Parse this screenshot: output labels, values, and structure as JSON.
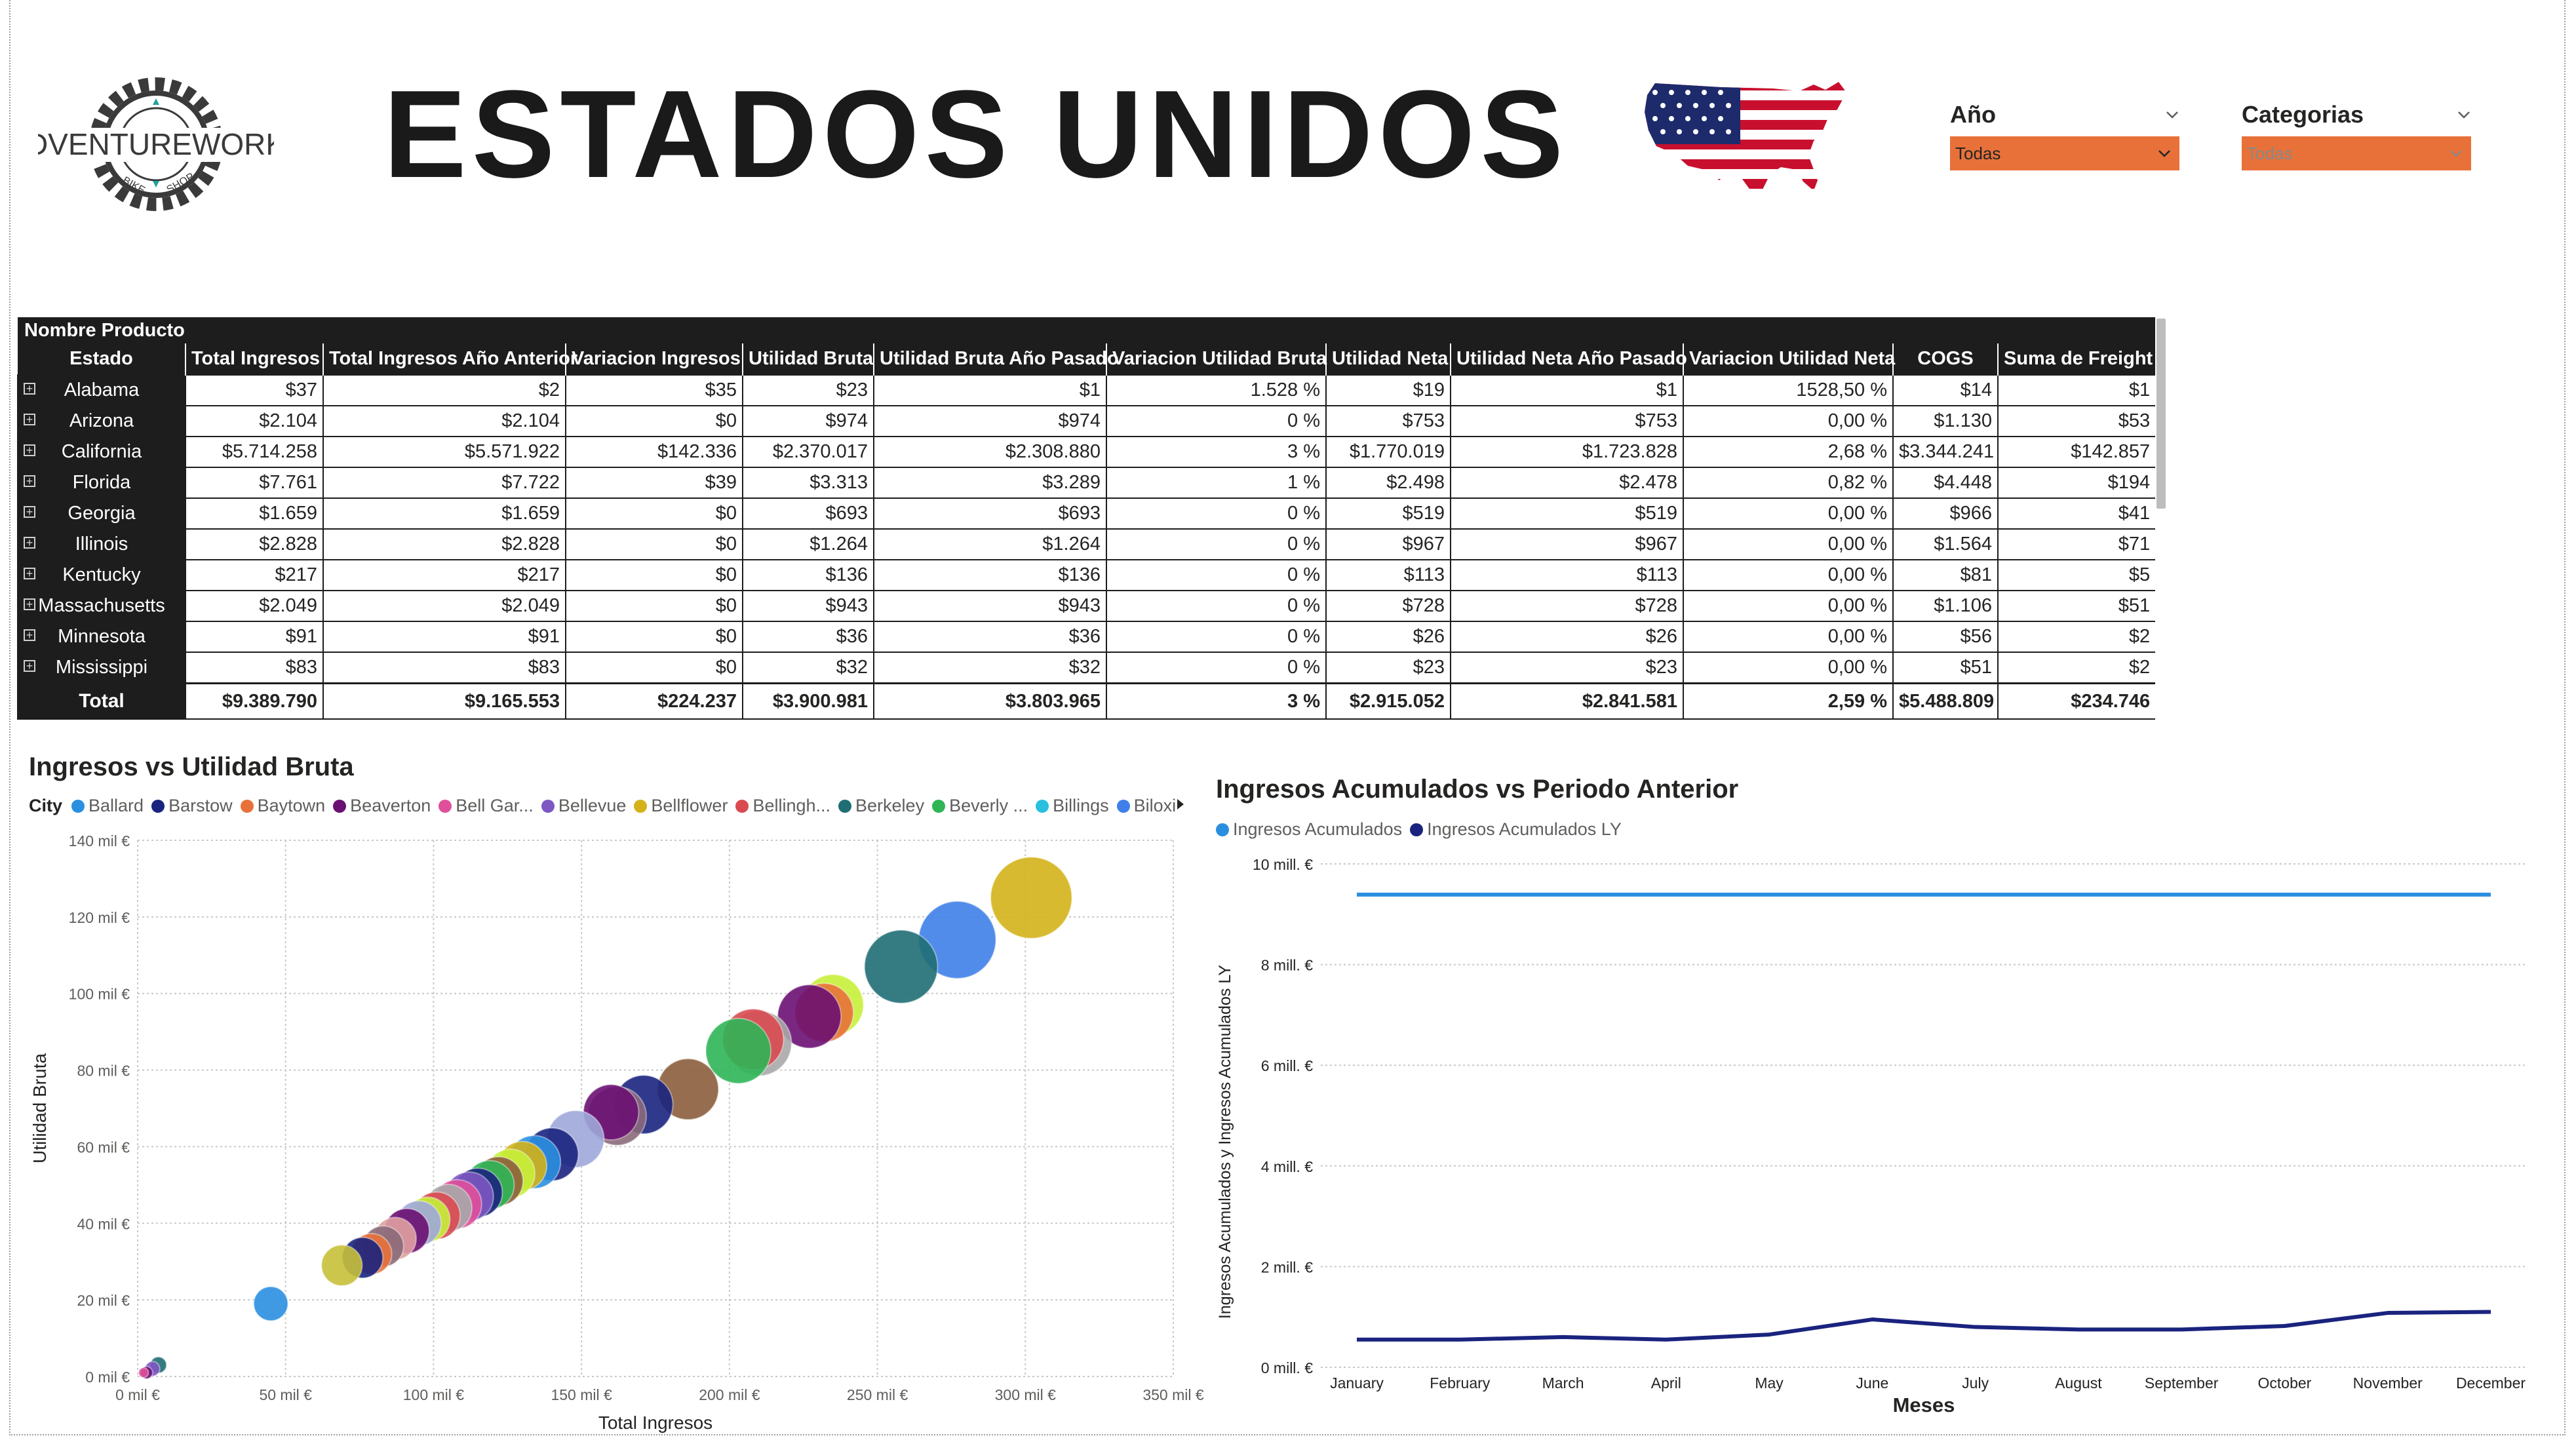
{
  "page": {
    "title": "ESTADOS UNIDOS"
  },
  "logo": {
    "brand": "ADVENTUREWORKS",
    "ring_left": "BIKE",
    "ring_right": "SHOP"
  },
  "slicers": [
    {
      "label": "Año",
      "value": "Todas"
    },
    {
      "label": "Categorias",
      "value": "Todas"
    }
  ],
  "matrix": {
    "top_header": "Nombre Producto",
    "columns": [
      "Estado",
      "Total Ingresos",
      "Total Ingresos Año Anterior",
      "Variacion Ingresos",
      "Utilidad Bruta",
      "Utilidad Bruta Año Pasado",
      "Variacion Utilidad Bruta",
      "Utilidad Neta",
      "Utilidad Neta Año Pasado",
      "Variacion Utilidad Neta",
      "COGS",
      "Suma de Freight"
    ],
    "rows": [
      [
        "Alabama",
        "$37",
        "$2",
        "$35",
        "$23",
        "$1",
        "1.528 %",
        "$19",
        "$1",
        "1528,50 %",
        "$14",
        "$1"
      ],
      [
        "Arizona",
        "$2.104",
        "$2.104",
        "$0",
        "$974",
        "$974",
        "0 %",
        "$753",
        "$753",
        "0,00 %",
        "$1.130",
        "$53"
      ],
      [
        "California",
        "$5.714.258",
        "$5.571.922",
        "$142.336",
        "$2.370.017",
        "$2.308.880",
        "3 %",
        "$1.770.019",
        "$1.723.828",
        "2,68 %",
        "$3.344.241",
        "$142.857"
      ],
      [
        "Florida",
        "$7.761",
        "$7.722",
        "$39",
        "$3.313",
        "$3.289",
        "1 %",
        "$2.498",
        "$2.478",
        "0,82 %",
        "$4.448",
        "$194"
      ],
      [
        "Georgia",
        "$1.659",
        "$1.659",
        "$0",
        "$693",
        "$693",
        "0 %",
        "$519",
        "$519",
        "0,00 %",
        "$966",
        "$41"
      ],
      [
        "Illinois",
        "$2.828",
        "$2.828",
        "$0",
        "$1.264",
        "$1.264",
        "0 %",
        "$967",
        "$967",
        "0,00 %",
        "$1.564",
        "$71"
      ],
      [
        "Kentucky",
        "$217",
        "$217",
        "$0",
        "$136",
        "$136",
        "0 %",
        "$113",
        "$113",
        "0,00 %",
        "$81",
        "$5"
      ],
      [
        "Massachusetts",
        "$2.049",
        "$2.049",
        "$0",
        "$943",
        "$943",
        "0 %",
        "$728",
        "$728",
        "0,00 %",
        "$1.106",
        "$51"
      ],
      [
        "Minnesota",
        "$91",
        "$91",
        "$0",
        "$36",
        "$36",
        "0 %",
        "$26",
        "$26",
        "0,00 %",
        "$56",
        "$2"
      ],
      [
        "Mississippi",
        "$83",
        "$83",
        "$0",
        "$32",
        "$32",
        "0 %",
        "$23",
        "$23",
        "0,00 %",
        "$51",
        "$2"
      ]
    ],
    "total": [
      "Total",
      "$9.389.790",
      "$9.165.553",
      "$224.237",
      "$3.900.981",
      "$3.803.965",
      "3 %",
      "$2.915.052",
      "$2.841.581",
      "2,59 %",
      "$5.488.809",
      "$234.746"
    ]
  },
  "chart_data": [
    {
      "type": "scatter",
      "title": "Ingresos vs Utilidad Bruta",
      "xlabel": "Total Ingresos",
      "ylabel": "Utilidad Bruta",
      "legend_title": "City",
      "legend_position": "top",
      "legend": [
        {
          "name": "Ballard",
          "color": "#2b8fe0"
        },
        {
          "name": "Barstow",
          "color": "#1a237e"
        },
        {
          "name": "Baytown",
          "color": "#e8713a"
        },
        {
          "name": "Beaverton",
          "color": "#6a1072"
        },
        {
          "name": "Bell Gar...",
          "color": "#e0509a"
        },
        {
          "name": "Bellevue",
          "color": "#7e57c2"
        },
        {
          "name": "Bellflower",
          "color": "#d4b21a"
        },
        {
          "name": "Bellingh...",
          "color": "#d94a50"
        },
        {
          "name": "Berkeley",
          "color": "#1f6e74"
        },
        {
          "name": "Beverly ...",
          "color": "#2fb556"
        },
        {
          "name": "Billings",
          "color": "#29c0e0"
        },
        {
          "name": "Biloxi",
          "color": "#3f7fe8"
        }
      ],
      "xlim": [
        0,
        350
      ],
      "ylim": [
        0,
        140
      ],
      "x_ticks": [
        "0 mil €",
        "50 mil €",
        "100 mil €",
        "150 mil €",
        "200 mil €",
        "250 mil €",
        "300 mil €",
        "350 mil €"
      ],
      "y_ticks": [
        "0 mil €",
        "20 mil €",
        "40 mil €",
        "60 mil €",
        "80 mil €",
        "100 mil €",
        "120 mil €",
        "140 mil €"
      ],
      "grid": true,
      "points": [
        {
          "x": 302,
          "y": 125,
          "size": 1.0,
          "color": "#d4b21a"
        },
        {
          "x": 277,
          "y": 114,
          "size": 0.95,
          "color": "#3f7fe8"
        },
        {
          "x": 258,
          "y": 107,
          "size": 0.9,
          "color": "#1f6e74"
        },
        {
          "x": 235,
          "y": 97,
          "size": 0.75,
          "color": "#c6f03a"
        },
        {
          "x": 232,
          "y": 95,
          "size": 0.72,
          "color": "#e8713a"
        },
        {
          "x": 227,
          "y": 94,
          "size": 0.78,
          "color": "#6a1072"
        },
        {
          "x": 210,
          "y": 87,
          "size": 0.8,
          "color": "#a8a8a8"
        },
        {
          "x": 208,
          "y": 88,
          "size": 0.75,
          "color": "#d94a50"
        },
        {
          "x": 203,
          "y": 85,
          "size": 0.8,
          "color": "#2fb556"
        },
        {
          "x": 186,
          "y": 75,
          "size": 0.75,
          "color": "#8b5e3c"
        },
        {
          "x": 171,
          "y": 71,
          "size": 0.72,
          "color": "#1a237e"
        },
        {
          "x": 162,
          "y": 68,
          "size": 0.72,
          "color": "#8b6a7a"
        },
        {
          "x": 160,
          "y": 69,
          "size": 0.68,
          "color": "#6a1072"
        },
        {
          "x": 148,
          "y": 62,
          "size": 0.7,
          "color": "#9fa8da"
        },
        {
          "x": 140,
          "y": 58,
          "size": 0.65,
          "color": "#1a237e"
        },
        {
          "x": 134,
          "y": 56,
          "size": 0.65,
          "color": "#2b8fe0"
        },
        {
          "x": 130,
          "y": 55,
          "size": 0.6,
          "color": "#d4b21a"
        },
        {
          "x": 126,
          "y": 53,
          "size": 0.6,
          "color": "#c6f03a"
        },
        {
          "x": 122,
          "y": 51,
          "size": 0.6,
          "color": "#8b5e3c"
        },
        {
          "x": 119,
          "y": 50,
          "size": 0.6,
          "color": "#2fb556"
        },
        {
          "x": 115,
          "y": 48,
          "size": 0.6,
          "color": "#1a237e"
        },
        {
          "x": 112,
          "y": 47,
          "size": 0.6,
          "color": "#7e57c2"
        },
        {
          "x": 108,
          "y": 45,
          "size": 0.6,
          "color": "#e0509a"
        },
        {
          "x": 105,
          "y": 44,
          "size": 0.58,
          "color": "#a8a8a8"
        },
        {
          "x": 101,
          "y": 42,
          "size": 0.58,
          "color": "#d94a50"
        },
        {
          "x": 98,
          "y": 41,
          "size": 0.55,
          "color": "#c6f03a"
        },
        {
          "x": 95,
          "y": 40,
          "size": 0.55,
          "color": "#9fa8da"
        },
        {
          "x": 91,
          "y": 38,
          "size": 0.55,
          "color": "#6a1072"
        },
        {
          "x": 87,
          "y": 36,
          "size": 0.52,
          "color": "#e0a0a0"
        },
        {
          "x": 83,
          "y": 34,
          "size": 0.5,
          "color": "#8b6a7a"
        },
        {
          "x": 79,
          "y": 32,
          "size": 0.5,
          "color": "#e8713a"
        },
        {
          "x": 76,
          "y": 31,
          "size": 0.5,
          "color": "#1a237e"
        },
        {
          "x": 69,
          "y": 29,
          "size": 0.5,
          "color": "#c7c03a"
        },
        {
          "x": 45,
          "y": 19,
          "size": 0.42,
          "color": "#2b8fe0"
        },
        {
          "x": 7,
          "y": 3,
          "size": 0.2,
          "color": "#1f6e74"
        },
        {
          "x": 5,
          "y": 2,
          "size": 0.18,
          "color": "#7e57c2"
        },
        {
          "x": 3,
          "y": 1,
          "size": 0.15,
          "color": "#6a1072"
        },
        {
          "x": 2,
          "y": 1,
          "size": 0.12,
          "color": "#e0509a"
        }
      ]
    },
    {
      "type": "line",
      "title": "Ingresos Acumulados vs Periodo Anterior",
      "xlabel": "Meses",
      "ylabel": "Ingresos Acumulados y Ingresos Acumulados LY",
      "legend_position": "top-left",
      "categories": [
        "January",
        "February",
        "March",
        "April",
        "May",
        "June",
        "July",
        "August",
        "September",
        "October",
        "November",
        "December"
      ],
      "ylim": [
        0,
        10
      ],
      "y_ticks": [
        "0 mill. €",
        "2 mill. €",
        "4 mill. €",
        "6 mill. €",
        "8 mill. €",
        "10 mill. €"
      ],
      "grid": true,
      "series": [
        {
          "name": "Ingresos Acumulados",
          "color": "#2b8fe0",
          "values": [
            9.39,
            9.39,
            9.39,
            9.39,
            9.39,
            9.39,
            9.39,
            9.39,
            9.39,
            9.39,
            9.39,
            9.39
          ]
        },
        {
          "name": "Ingresos Acumulados LY",
          "color": "#1a237e",
          "values": [
            0.55,
            0.55,
            0.6,
            0.55,
            0.65,
            0.95,
            0.8,
            0.75,
            0.75,
            0.82,
            1.08,
            1.1
          ]
        }
      ]
    }
  ]
}
